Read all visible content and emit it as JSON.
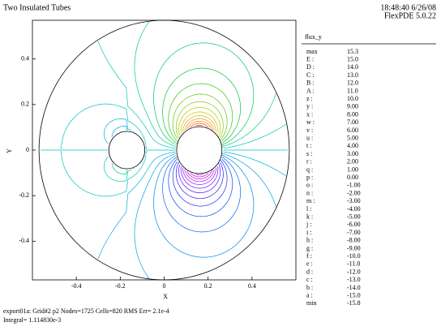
{
  "chart_data": {
    "type": "contour",
    "title": "Two Insulated Tubes",
    "timestamp": "18:48:40 6/26/08",
    "version": "FlexPDE 5.0.22",
    "legend_title": "flux_y",
    "x_label": "X",
    "y_label": "Y",
    "xlim": [
      -0.6,
      0.6
    ],
    "ylim": [
      -0.57,
      0.57
    ],
    "xticks": [
      -0.4,
      -0.2,
      0,
      0.2,
      0.4
    ],
    "yticks": [
      -0.4,
      -0.2,
      0,
      0.2,
      0.4
    ],
    "max": {
      "label": "max",
      "value": 15.3
    },
    "min": {
      "label": "min",
      "value": -15.8
    },
    "series": [
      {
        "name": "E :",
        "value": 15,
        "value_label": "15.0",
        "color": "#ff0000"
      },
      {
        "name": "D :",
        "value": 14,
        "value_label": "14.0",
        "color": "#ff2800"
      },
      {
        "name": "C :",
        "value": 13,
        "value_label": "13.0",
        "color": "#ff5000"
      },
      {
        "name": "B :",
        "value": 12,
        "value_label": "12.0",
        "color": "#ff7800"
      },
      {
        "name": "A :",
        "value": 11,
        "value_label": "11.0",
        "color": "#f09800"
      },
      {
        "name": "z :",
        "value": 10,
        "value_label": "10.0",
        "color": "#e0b000"
      },
      {
        "name": "y :",
        "value": 9,
        "value_label": "9.00",
        "color": "#d0c000"
      },
      {
        "name": "x :",
        "value": 8,
        "value_label": "8.00",
        "color": "#b0c800"
      },
      {
        "name": "w :",
        "value": 7,
        "value_label": "7.00",
        "color": "#88c800"
      },
      {
        "name": "v :",
        "value": 6,
        "value_label": "6.00",
        "color": "#60c800"
      },
      {
        "name": "u :",
        "value": 5,
        "value_label": "5.00",
        "color": "#30c800"
      },
      {
        "name": "t :",
        "value": 4,
        "value_label": "4.00",
        "color": "#00c830"
      },
      {
        "name": "s :",
        "value": 3,
        "value_label": "3.00",
        "color": "#00c860"
      },
      {
        "name": "r :",
        "value": 2,
        "value_label": "2.00",
        "color": "#00c890"
      },
      {
        "name": "q :",
        "value": 1,
        "value_label": "1.00",
        "color": "#00c8b0"
      },
      {
        "name": "p :",
        "value": 0,
        "value_label": "0.00",
        "color": "#00c0c8"
      },
      {
        "name": "o :",
        "value": -1,
        "value_label": "-1.00",
        "color": "#00b0d8"
      },
      {
        "name": "n :",
        "value": -2,
        "value_label": "-2.00",
        "color": "#00a0e0"
      },
      {
        "name": "m :",
        "value": -3,
        "value_label": "-3.00",
        "color": "#0088e8"
      },
      {
        "name": "l :",
        "value": -4,
        "value_label": "-4.00",
        "color": "#0068f0"
      },
      {
        "name": "k :",
        "value": -5,
        "value_label": "-5.00",
        "color": "#0048f8"
      },
      {
        "name": "j :",
        "value": -6,
        "value_label": "-6.00",
        "color": "#1828ff"
      },
      {
        "name": "i :",
        "value": -7,
        "value_label": "-7.00",
        "color": "#3018ff"
      },
      {
        "name": "h :",
        "value": -8,
        "value_label": "-8.00",
        "color": "#5010ff"
      },
      {
        "name": "g :",
        "value": -9,
        "value_label": "-9.00",
        "color": "#7010ff"
      },
      {
        "name": "f :",
        "value": -10,
        "value_label": "-10.0",
        "color": "#9010f8"
      },
      {
        "name": "e :",
        "value": -11,
        "value_label": "-11.0",
        "color": "#a810f0"
      },
      {
        "name": "d :",
        "value": -12,
        "value_label": "-12.0",
        "color": "#b800e8"
      },
      {
        "name": "c :",
        "value": -13,
        "value_label": "-13.0",
        "color": "#c800e0"
      },
      {
        "name": "b :",
        "value": -14,
        "value_label": "-14.0",
        "color": "#d800d0"
      },
      {
        "name": "a :",
        "value": -15,
        "value_label": "-15.0",
        "color": "#e800c0"
      }
    ],
    "footer": [
      "export01a:  Grid#2  p2  Nodes=1725 Cells=820 RMS Err= 2.1e-4",
      "Integral=  1.114830e-3"
    ]
  }
}
